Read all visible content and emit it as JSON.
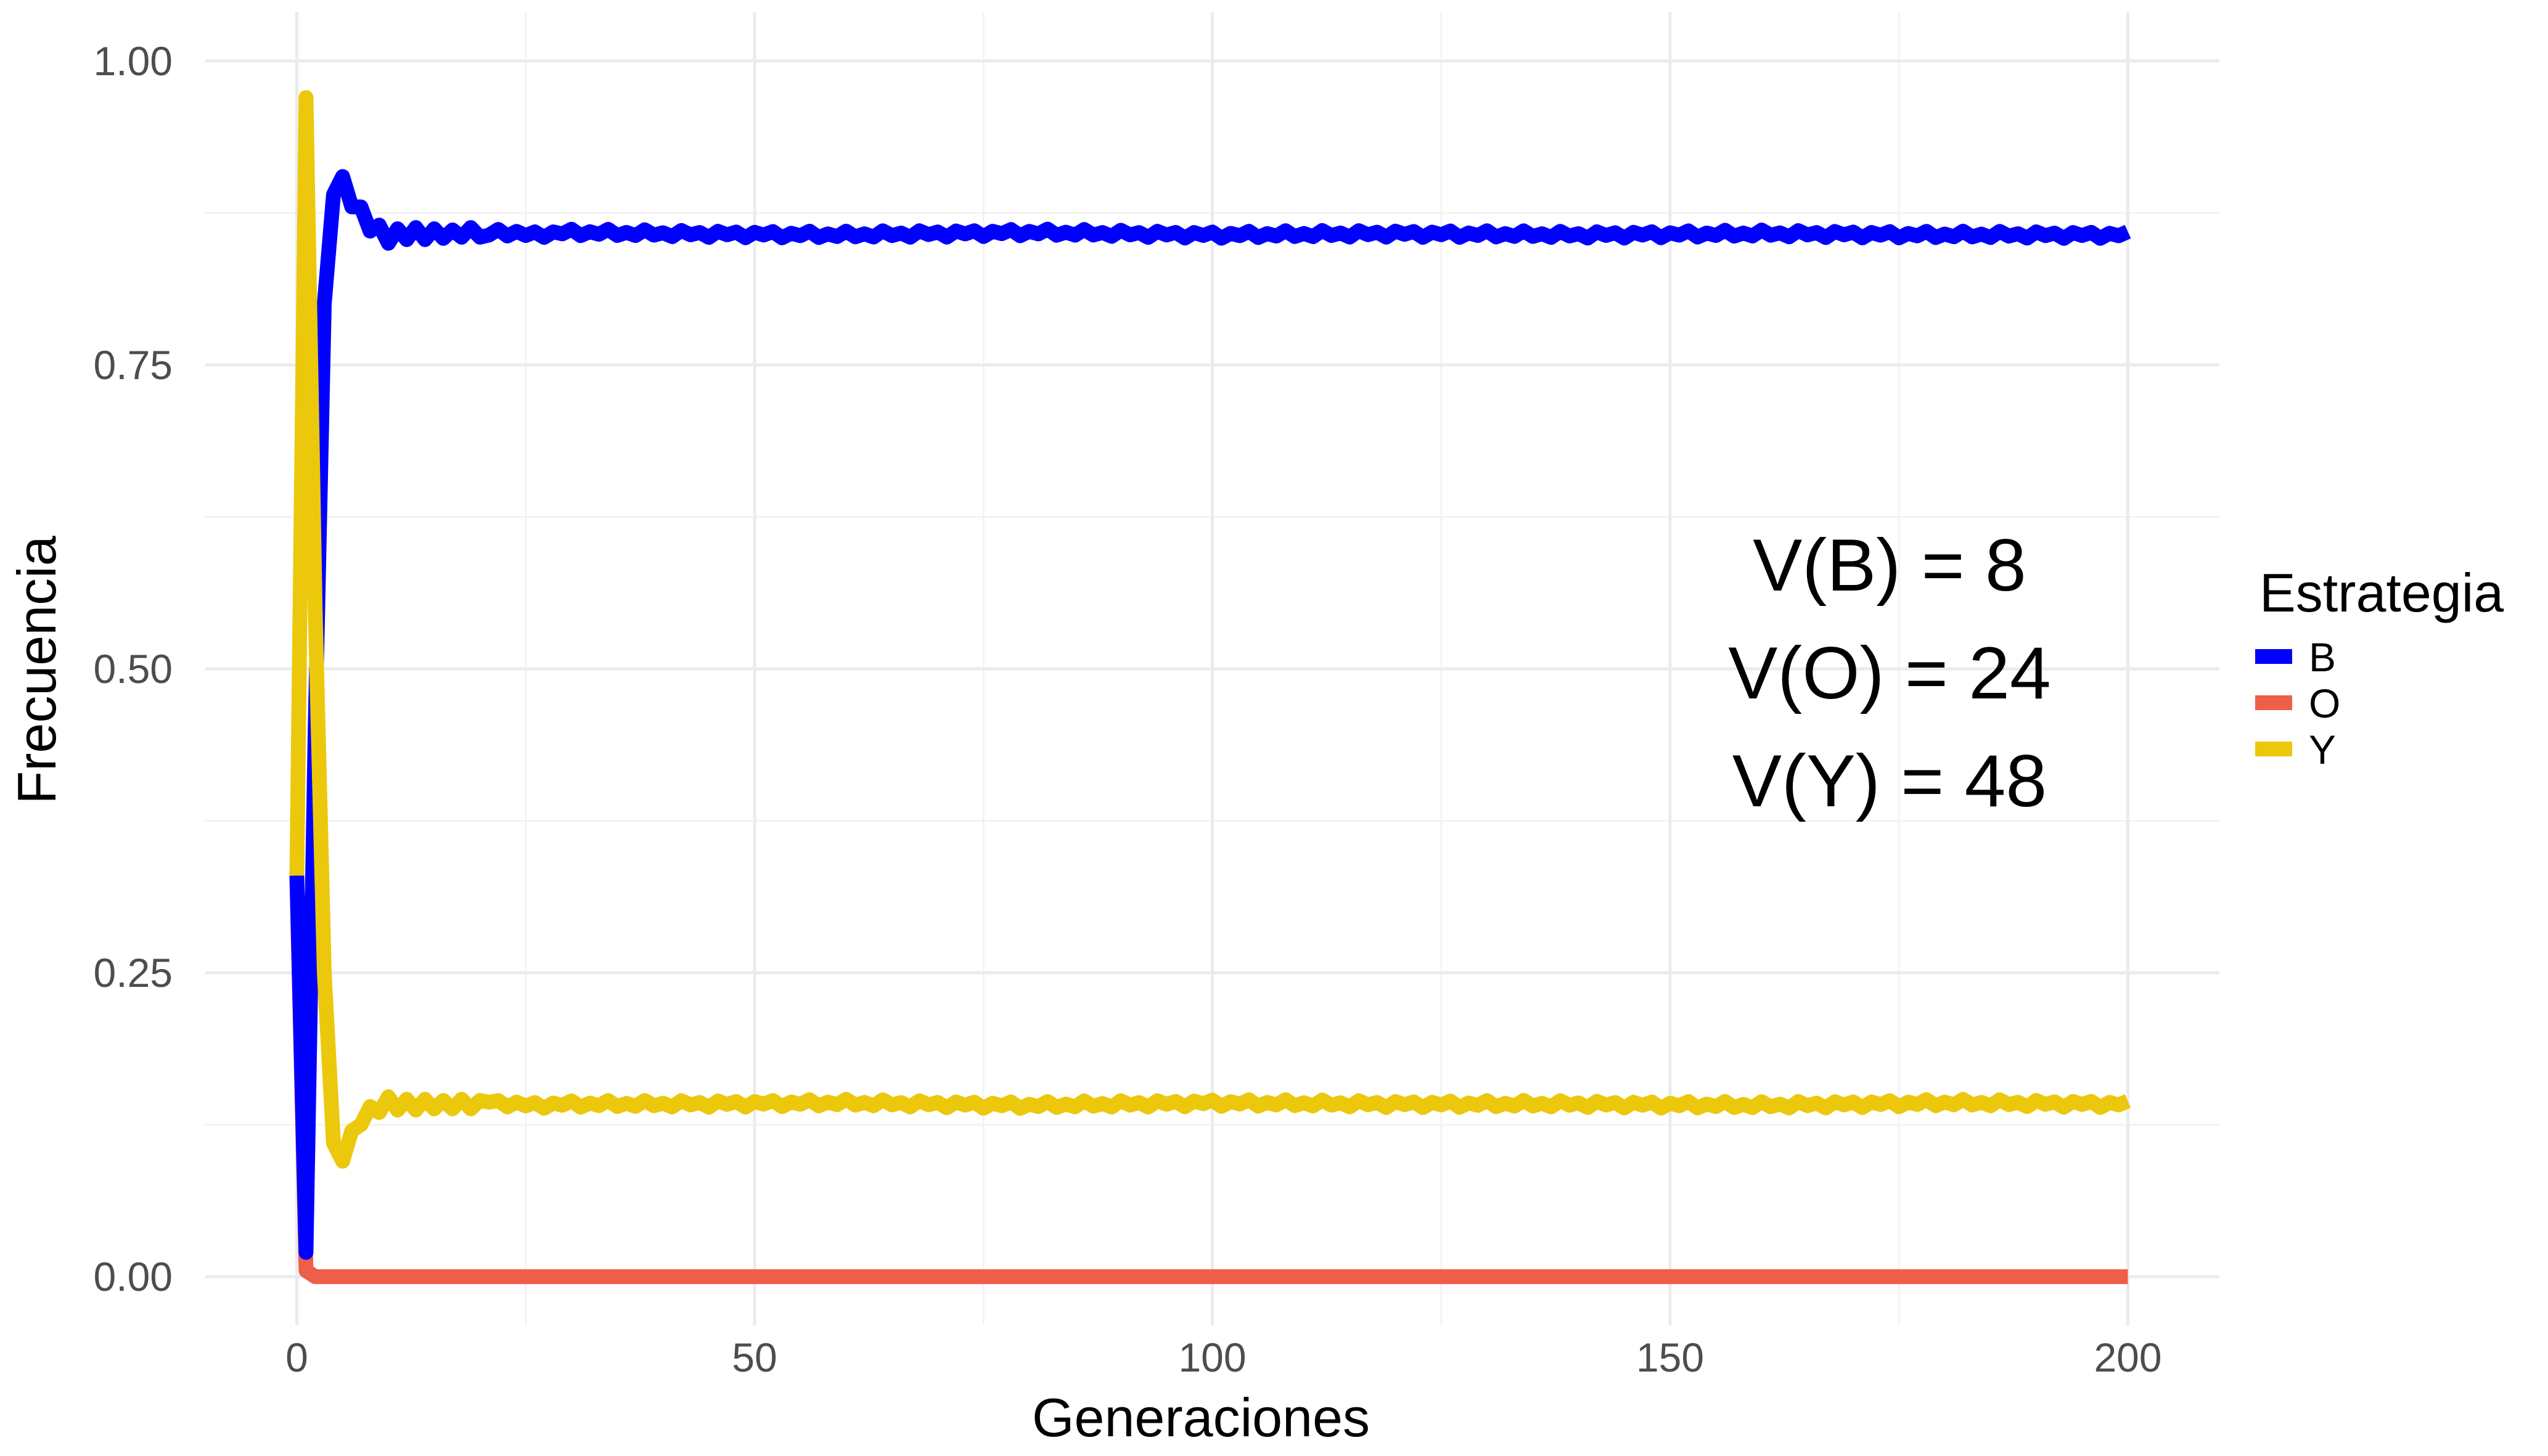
{
  "chart_data": {
    "type": "line",
    "title": "",
    "xlabel": "Generaciones",
    "ylabel": "Frecuencia",
    "xlim": [
      -10,
      210
    ],
    "ylim": [
      -0.04,
      1.04
    ],
    "x_ticks": [
      0,
      50,
      100,
      150,
      200
    ],
    "x_tick_labels": [
      "0",
      "50",
      "100",
      "150",
      "200"
    ],
    "y_ticks": [
      0,
      0.25,
      0.5,
      0.75,
      1
    ],
    "y_tick_labels": [
      "0.00",
      "0.25",
      "0.50",
      "0.75",
      "1.00"
    ],
    "grid": true,
    "legend": {
      "title": "Estrategia",
      "position": "right"
    },
    "annotations": [
      "V(B) = 8",
      "V(O) = 24",
      "V(Y) = 48"
    ],
    "series": [
      {
        "name": "B",
        "color": "#0000ff",
        "points": [
          [
            0,
            0.33
          ],
          [
            1,
            0.02
          ],
          [
            2,
            0.45
          ],
          [
            3,
            0.8
          ],
          [
            4,
            0.89
          ],
          [
            5,
            0.905
          ],
          [
            6,
            0.88
          ],
          [
            7,
            0.88
          ],
          [
            8,
            0.86
          ],
          [
            9,
            0.865
          ],
          [
            10,
            0.85
          ],
          [
            11,
            0.862
          ],
          [
            12,
            0.853
          ],
          [
            13,
            0.863
          ],
          [
            14,
            0.853
          ],
          [
            15,
            0.862
          ],
          [
            16,
            0.854
          ],
          [
            17,
            0.861
          ],
          [
            18,
            0.855
          ],
          [
            19,
            0.863
          ],
          [
            20,
            0.855
          ],
          [
            22,
            0.86
          ],
          [
            25,
            0.857
          ],
          [
            30,
            0.859
          ],
          [
            40,
            0.858
          ],
          [
            60,
            0.857
          ],
          [
            80,
            0.859
          ],
          [
            100,
            0.857
          ],
          [
            120,
            0.858
          ],
          [
            140,
            0.857
          ],
          [
            160,
            0.858
          ],
          [
            180,
            0.857
          ],
          [
            200,
            0.857
          ]
        ],
        "jitter": 0.003
      },
      {
        "name": "O",
        "color": "#ee5e48",
        "points": [
          [
            0,
            0.33
          ],
          [
            1,
            0.005
          ],
          [
            2,
            0.0
          ],
          [
            200,
            0.0
          ]
        ],
        "jitter": 0
      },
      {
        "name": "Y",
        "color": "#ecc80d",
        "points": [
          [
            0,
            0.33
          ],
          [
            1,
            0.97
          ],
          [
            2,
            0.55
          ],
          [
            3,
            0.25
          ],
          [
            4,
            0.11
          ],
          [
            5,
            0.095
          ],
          [
            6,
            0.12
          ],
          [
            7,
            0.125
          ],
          [
            8,
            0.14
          ],
          [
            9,
            0.135
          ],
          [
            10,
            0.148
          ],
          [
            11,
            0.137
          ],
          [
            12,
            0.146
          ],
          [
            13,
            0.137
          ],
          [
            14,
            0.146
          ],
          [
            15,
            0.138
          ],
          [
            16,
            0.145
          ],
          [
            17,
            0.138
          ],
          [
            18,
            0.146
          ],
          [
            19,
            0.138
          ],
          [
            20,
            0.145
          ],
          [
            25,
            0.141
          ],
          [
            30,
            0.142
          ],
          [
            40,
            0.142
          ],
          [
            60,
            0.143
          ],
          [
            80,
            0.141
          ],
          [
            100,
            0.143
          ],
          [
            120,
            0.142
          ],
          [
            140,
            0.142
          ],
          [
            160,
            0.141
          ],
          [
            180,
            0.143
          ],
          [
            200,
            0.142
          ]
        ],
        "jitter": 0.003
      }
    ]
  }
}
